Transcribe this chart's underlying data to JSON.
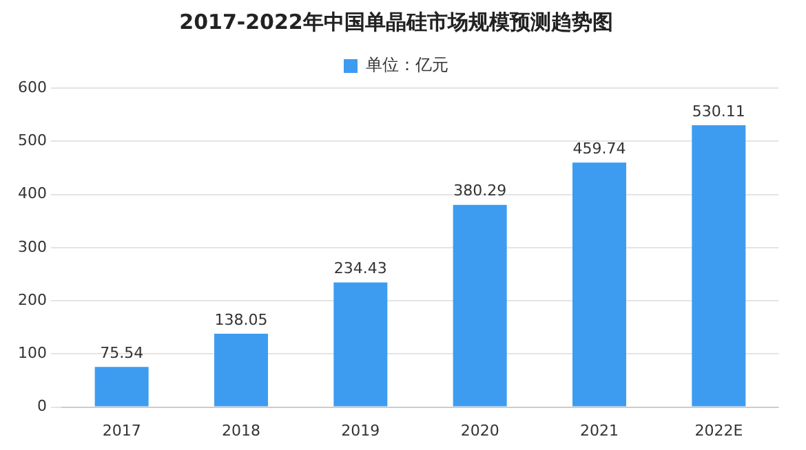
{
  "chart_data": {
    "type": "bar",
    "title": "2017-2022年中国单晶硅市场规模预测趋势图",
    "categories": [
      "2017",
      "2018",
      "2019",
      "2020",
      "2021",
      "2022E"
    ],
    "series": [
      {
        "name": "单位：亿元",
        "color": "#3d9cf0",
        "values": [
          75.54,
          138.05,
          234.43,
          380.29,
          459.74,
          530.11
        ]
      }
    ],
    "ylim": [
      0,
      600
    ],
    "yticks": [
      0,
      100,
      200,
      300,
      400,
      500,
      600
    ],
    "grid": "y",
    "legend": "top",
    "data_labels": true
  }
}
